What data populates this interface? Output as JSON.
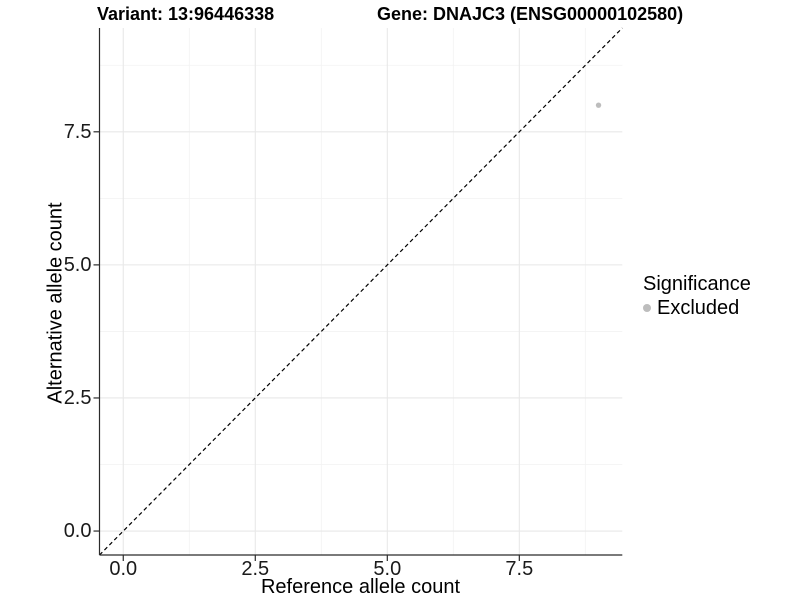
{
  "header": {
    "variant_title": "Variant: 13:96446338",
    "gene_title": "Gene: DNAJC3 (ENSG00000102580)"
  },
  "chart_data": {
    "type": "scatter",
    "xlabel": "Reference allele count",
    "ylabel": "Alternative allele count",
    "xlim": [
      -0.45,
      9.45
    ],
    "ylim": [
      -0.45,
      9.45
    ],
    "x_ticks": [
      0,
      2.5,
      5,
      7.5
    ],
    "x_tick_labels": [
      "0.0",
      "2.5",
      "5.0",
      "7.5"
    ],
    "y_ticks": [
      0,
      2.5,
      5,
      7.5
    ],
    "y_tick_labels": [
      "0.0",
      "2.5",
      "5.0",
      "7.5"
    ],
    "minor_ticks": [
      1.25,
      3.75,
      6.25,
      8.75
    ],
    "grid": true,
    "reference_line": {
      "type": "identity",
      "style": "dashed",
      "color": "#000000"
    },
    "points": [
      {
        "x": 9,
        "y": 8,
        "significance": "Excluded"
      }
    ],
    "legend": {
      "title": "Significance",
      "position": "right",
      "entries": [
        {
          "label": "Excluded",
          "color": "#bdbdbd"
        }
      ]
    },
    "colors": {
      "point": "#bdbdbd",
      "major_grid": "#e8e8e8",
      "minor_grid": "#f2f2f2",
      "axis": "#2b2b2b"
    }
  }
}
